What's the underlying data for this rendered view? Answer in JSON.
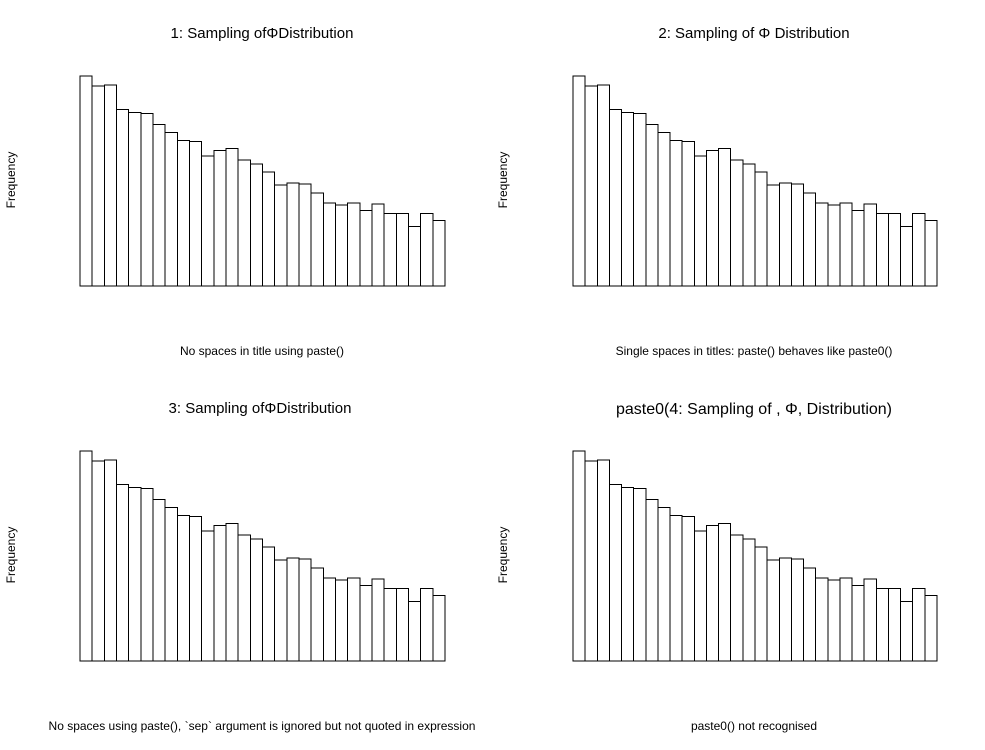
{
  "chart_data": [
    {
      "type": "bar",
      "histogram": true,
      "title": "1: Sampling ofΦDistribution",
      "xlabel": "No spaces in title using paste()",
      "ylabel": "Frequency",
      "values": [
        212,
        202,
        203,
        178,
        175,
        174,
        163,
        155,
        147,
        146,
        131,
        137,
        139,
        127,
        123,
        115,
        102,
        104,
        103,
        94,
        84,
        82,
        84,
        76,
        83,
        73,
        73,
        60,
        73,
        66
      ],
      "ylim": [
        0,
        215
      ]
    },
    {
      "type": "bar",
      "histogram": true,
      "title": "2: Sampling of Φ Distribution",
      "xlabel": "Single spaces in titles: paste() behaves like paste0()",
      "ylabel": "Frequency",
      "values": [
        212,
        202,
        203,
        178,
        175,
        174,
        163,
        155,
        147,
        146,
        131,
        137,
        139,
        127,
        123,
        115,
        102,
        104,
        103,
        94,
        84,
        82,
        84,
        76,
        83,
        73,
        73,
        60,
        73,
        66
      ],
      "ylim": [
        0,
        215
      ]
    },
    {
      "type": "bar",
      "histogram": true,
      "title": "3: Sampling ofΦDistribution",
      "xlabel": "No spaces using paste(), `sep` argument is ignored but not quoted in expression",
      "ylabel": "Frequency",
      "values": [
        212,
        202,
        203,
        178,
        175,
        174,
        163,
        155,
        147,
        146,
        131,
        137,
        139,
        127,
        123,
        115,
        102,
        104,
        103,
        94,
        84,
        82,
        84,
        76,
        83,
        73,
        73,
        60,
        73,
        66
      ],
      "ylim": [
        0,
        215
      ]
    },
    {
      "type": "bar",
      "histogram": true,
      "title": "paste0(4: Sampling of , Φ,  Distribution)",
      "xlabel": "paste0() not recognised",
      "ylabel": "Frequency",
      "values": [
        212,
        202,
        203,
        178,
        175,
        174,
        163,
        155,
        147,
        146,
        131,
        137,
        139,
        127,
        123,
        115,
        102,
        104,
        103,
        94,
        84,
        82,
        84,
        76,
        83,
        73,
        73,
        60,
        73,
        66
      ],
      "ylim": [
        0,
        215
      ]
    }
  ]
}
